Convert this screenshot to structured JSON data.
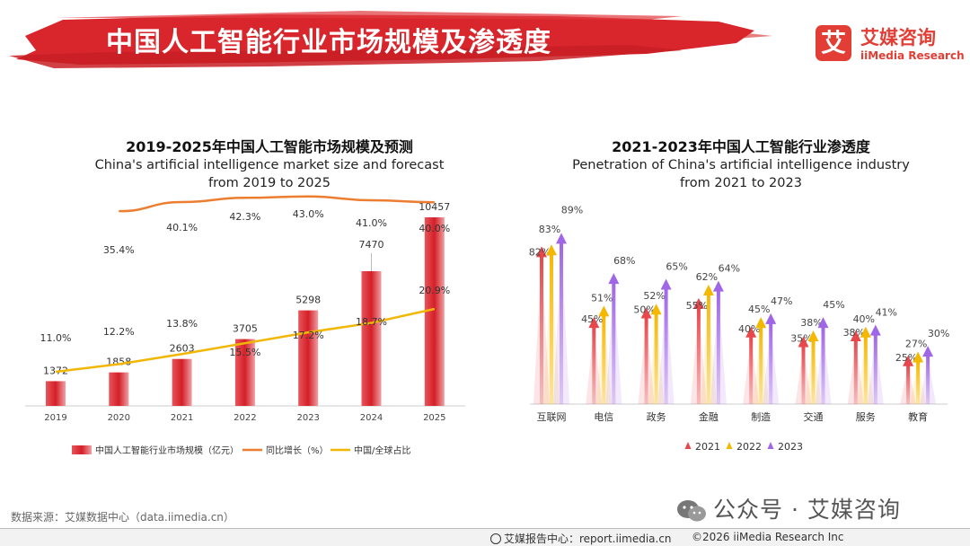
{
  "header": {
    "title": "中国人工智能行业市场规模及渗透度",
    "logo_mark": "艾",
    "logo_cn": "艾媒咨询",
    "logo_en": "iiMedia Research"
  },
  "colors": {
    "brand_red": "#e23e35",
    "bar_red": "#e2393f",
    "growth_orange": "#ec7d31",
    "share_yellow": "#f2b705",
    "series_2021": "#e8474c",
    "series_2022": "#f5b800",
    "series_2023": "#a066e8"
  },
  "chart_data": [
    {
      "type": "bar",
      "title": "2019-2025年中国人工智能市场规模及预测",
      "subtitle_line1": "China's artificial intelligence market size and forecast",
      "subtitle_line2": "from 2019 to 2025",
      "categories": [
        "2019",
        "2020",
        "2021",
        "2022",
        "2023",
        "2024",
        "2025"
      ],
      "series": [
        {
          "name": "中国人工智能行业市场规模（亿元）",
          "kind": "bar",
          "values": [
            1372,
            1858,
            2603,
            3705,
            5298,
            7470,
            10457
          ],
          "labels": [
            "1372",
            "1858",
            "2603",
            "3705",
            "5298",
            "7470",
            "10457"
          ]
        },
        {
          "name": "同比增长（%）",
          "kind": "line",
          "values": [
            null,
            35.4,
            40.1,
            42.3,
            43.0,
            41.0,
            40.0
          ],
          "labels": [
            "",
            "35.4%",
            "40.1%",
            "42.3%",
            "43.0%",
            "41.0%",
            "40.0%"
          ]
        },
        {
          "name": "中国/全球占比",
          "kind": "line",
          "values": [
            11.0,
            12.2,
            13.8,
            15.5,
            17.2,
            18.7,
            20.9
          ],
          "labels": [
            "11.0%",
            "12.2%",
            "13.8%",
            "15.5%",
            "17.2%",
            "18.7%",
            "20.9%"
          ]
        }
      ],
      "legend_position": "bottom"
    },
    {
      "type": "bar",
      "title": "2021-2023年中国人工智能行业渗透度",
      "subtitle_line1": "Penetration of China's artificial intelligence industry",
      "subtitle_line2": "from 2021 to 2023",
      "categories": [
        "互联网",
        "电信",
        "政务",
        "金融",
        "制造",
        "交通",
        "服务",
        "教育"
      ],
      "series": [
        {
          "name": "2021",
          "values": [
            82,
            45,
            50,
            55,
            40,
            35,
            38,
            25
          ],
          "labels": [
            "82%",
            "45%",
            "50%",
            "55%",
            "40%",
            "35%",
            "38%",
            "25%"
          ]
        },
        {
          "name": "2022",
          "values": [
            83,
            51,
            52,
            62,
            45,
            38,
            40,
            27
          ],
          "labels": [
            "83%",
            "51%",
            "52%",
            "62%",
            "45%",
            "38%",
            "40%",
            "27%"
          ]
        },
        {
          "name": "2023",
          "values": [
            89,
            68,
            65,
            64,
            47,
            45,
            41,
            30
          ],
          "labels": [
            "89%",
            "68%",
            "65%",
            "64%",
            "47%",
            "45%",
            "41%",
            "30%"
          ]
        }
      ],
      "legend_position": "bottom"
    }
  ],
  "footer": {
    "source": "数据来源：艾媒数据中心（data.iimedia.cn）",
    "watermark": "公众号 · 艾媒咨询",
    "report_center": "艾媒报告中心：report.iimedia.cn",
    "copyright": "©2026  iiMedia Research  Inc"
  }
}
